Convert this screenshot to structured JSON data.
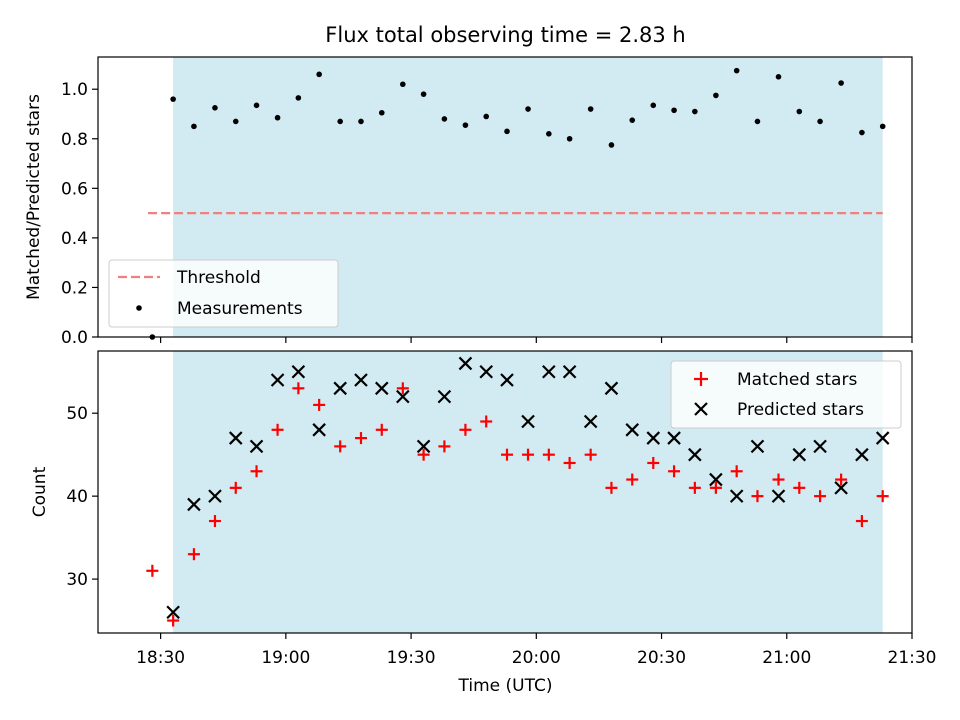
{
  "title": "Flux total observing time = 2.83 h",
  "colors": {
    "span": "#add8e6",
    "threshold": "#f08080",
    "measurement": "#000000",
    "matched": "#ff0000",
    "predicted": "#000000"
  },
  "chart_data": [
    {
      "type": "scatter",
      "panel": "top",
      "title": "Flux total observing time = 2.83 h",
      "ylabel": "Matched/Predicted stars",
      "xlabel": "",
      "xlim": [
        18.25,
        21.5
      ],
      "ylim": [
        0,
        1.13
      ],
      "yticks": [
        0.0,
        0.2,
        0.4,
        0.6,
        0.8,
        1.0
      ],
      "ytick_labels": [
        "0.0",
        "0.2",
        "0.4",
        "0.6",
        "0.8",
        "1.0"
      ],
      "shaded_span": [
        18.55,
        21.383
      ],
      "threshold": {
        "name": "Threshold",
        "y": 0.5,
        "x_range": [
          18.45,
          21.383
        ],
        "style": "dashed"
      },
      "legend": {
        "position": "lower-left",
        "entries": [
          "Threshold",
          "Measurements"
        ]
      },
      "series": [
        {
          "name": "Measurements",
          "marker": "dot",
          "x": [
            18.467,
            18.55,
            18.633,
            18.717,
            18.8,
            18.883,
            18.967,
            19.05,
            19.133,
            19.217,
            19.3,
            19.383,
            19.467,
            19.55,
            19.633,
            19.717,
            19.8,
            19.883,
            19.967,
            20.05,
            20.133,
            20.217,
            20.3,
            20.383,
            20.467,
            20.55,
            20.633,
            20.717,
            20.8,
            20.883,
            20.967,
            21.05,
            21.133,
            21.217,
            21.3,
            21.383
          ],
          "y": [
            0.0,
            0.96,
            0.85,
            0.925,
            0.87,
            0.935,
            0.885,
            0.965,
            1.06,
            0.87,
            0.87,
            0.905,
            1.02,
            0.98,
            0.88,
            0.855,
            0.89,
            0.83,
            0.92,
            0.82,
            0.8,
            0.92,
            0.775,
            0.875,
            0.935,
            0.915,
            0.91,
            0.975,
            1.075,
            0.87,
            1.05,
            0.91,
            0.87,
            1.025,
            0.825,
            0.85
          ]
        }
      ]
    },
    {
      "type": "scatter",
      "panel": "bottom",
      "ylabel": "Count",
      "xlabel": "Time (UTC)",
      "xlim": [
        18.25,
        21.5
      ],
      "ylim": [
        23.5,
        57.5
      ],
      "yticks": [
        30,
        40,
        50
      ],
      "ytick_labels": [
        "30",
        "40",
        "50"
      ],
      "xticks": [
        18.5,
        19.0,
        19.5,
        20.0,
        20.5,
        21.0,
        21.5
      ],
      "xtick_labels": [
        "18:30",
        "19:00",
        "19:30",
        "20:00",
        "20:30",
        "21:00",
        "21:30"
      ],
      "shaded_span": [
        18.55,
        21.383
      ],
      "legend": {
        "position": "top-right",
        "entries": [
          "Matched stars",
          "Predicted stars"
        ]
      },
      "series": [
        {
          "name": "Matched stars",
          "marker": "plus",
          "x": [
            18.467,
            18.55,
            18.633,
            18.717,
            18.8,
            18.883,
            18.967,
            19.05,
            19.133,
            19.217,
            19.3,
            19.383,
            19.467,
            19.55,
            19.633,
            19.717,
            19.8,
            19.883,
            19.967,
            20.05,
            20.133,
            20.217,
            20.3,
            20.383,
            20.467,
            20.55,
            20.633,
            20.717,
            20.8,
            20.883,
            20.967,
            21.05,
            21.133,
            21.217,
            21.3,
            21.383
          ],
          "y": [
            31,
            25,
            33,
            37,
            41,
            43,
            48,
            53,
            51,
            46,
            47,
            48,
            53,
            45,
            46,
            48,
            49,
            45,
            45,
            45,
            44,
            45,
            41,
            42,
            44,
            43,
            41,
            41,
            43,
            40,
            42,
            41,
            40,
            42,
            37,
            40
          ]
        },
        {
          "name": "Predicted stars",
          "marker": "x",
          "x": [
            18.55,
            18.633,
            18.717,
            18.8,
            18.883,
            18.967,
            19.05,
            19.133,
            19.217,
            19.3,
            19.383,
            19.467,
            19.55,
            19.633,
            19.717,
            19.8,
            19.883,
            19.967,
            20.05,
            20.133,
            20.217,
            20.3,
            20.383,
            20.467,
            20.55,
            20.633,
            20.717,
            20.8,
            20.883,
            20.967,
            21.05,
            21.133,
            21.217,
            21.3,
            21.383
          ],
          "y": [
            26,
            39,
            40,
            47,
            46,
            54,
            55,
            48,
            53,
            54,
            53,
            52,
            46,
            52,
            56,
            55,
            54,
            49,
            55,
            55,
            49,
            53,
            48,
            47,
            47,
            45,
            42,
            40,
            46,
            40,
            45,
            46,
            41,
            45,
            47
          ]
        }
      ]
    }
  ]
}
